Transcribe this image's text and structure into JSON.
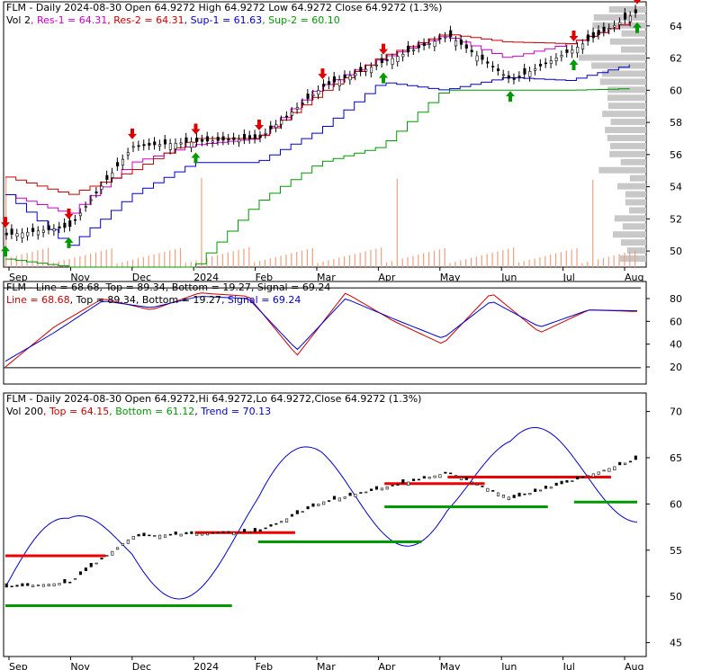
{
  "chart_data": [
    {
      "type": "line",
      "title": "FLM - Daily 2024-08-30 Open 64.9272  High 64.9272  Low 64.9272  Close 64.9272 (1.3%)",
      "legend": [
        {
          "label": "Vol 2",
          "color": "#000000"
        },
        {
          "label": "Res-1 = 64.31",
          "color": "#cc00cc"
        },
        {
          "label": "Res-2 = 64.31",
          "color": "#cc0000"
        },
        {
          "label": "Sup-1 = 61.63",
          "color": "#0000cc"
        },
        {
          "label": "Sup-2 = 60.10",
          "color": "#009900"
        }
      ],
      "x_tick_labels": [
        "Sep",
        "Nov",
        "Dec",
        "2024",
        "Feb",
        "Mar",
        "Apr",
        "May",
        "Jun",
        "Jul",
        "Aug"
      ],
      "y_tick_labels": [
        "64",
        "62",
        "60",
        "58",
        "56",
        "54",
        "52",
        "50"
      ],
      "ylim": [
        49,
        65.5
      ],
      "grid": false,
      "close_monthly": [
        {
          "x": "Sep",
          "y": 51.0
        },
        {
          "x": "Nov",
          "y": 51.5
        },
        {
          "x": "Dec",
          "y": 56.5
        },
        {
          "x": "2024",
          "y": 56.8
        },
        {
          "x": "Feb",
          "y": 57.0
        },
        {
          "x": "Mar",
          "y": 60.2
        },
        {
          "x": "Apr",
          "y": 61.8
        },
        {
          "x": "May",
          "y": 63.4
        },
        {
          "x": "Jun",
          "y": 60.6
        },
        {
          "x": "Jul",
          "y": 62.6
        },
        {
          "x": "Aug",
          "y": 64.9
        }
      ],
      "series": [
        {
          "name": "Res-1",
          "values": [
            53.5,
            52.3,
            55.5,
            56.6,
            57.0,
            60.2,
            62.0,
            63.4,
            62.0,
            62.9,
            64.3
          ]
        },
        {
          "name": "Res-2",
          "values": [
            54.6,
            53.5,
            55.0,
            57.0,
            57.0,
            59.8,
            62.1,
            63.5,
            63.0,
            62.9,
            64.3
          ]
        },
        {
          "name": "Sup-1",
          "values": [
            53.5,
            50.3,
            53.5,
            55.5,
            55.5,
            57.5,
            60.5,
            60.0,
            60.8,
            60.6,
            61.6
          ]
        },
        {
          "name": "Sup-2",
          "values": [
            49.5,
            49.0,
            49.0,
            49.0,
            53.0,
            55.5,
            56.5,
            60.0,
            60.0,
            60.0,
            60.1
          ]
        }
      ],
      "buy_signals": [
        "Sep",
        "Nov",
        "2024",
        "Apr",
        "Jun",
        "Jul",
        "Aug"
      ],
      "sell_signals": [
        "Sep",
        "Nov",
        "Dec",
        "2024",
        "Feb",
        "Mar",
        "Apr",
        "Jul",
        "Aug"
      ],
      "volume_profile": true
    },
    {
      "type": "line",
      "title": "FLM - Line = 68.68, Top = 89.34, Bottom = 19.27, Signal = 69.24",
      "legend": [
        {
          "label": "Line = 68.68",
          "color": "#cc0000"
        },
        {
          "label": "Top = 89.34",
          "color": "#000000"
        },
        {
          "label": "Bottom = 19.27",
          "color": "#000000"
        },
        {
          "label": "Signal = 69.24",
          "color": "#0000cc"
        }
      ],
      "x_tick_labels": [],
      "y_tick_labels": [
        "80",
        "60",
        "40",
        "20"
      ],
      "ylim": [
        5,
        95
      ],
      "top": 89.34,
      "bottom": 19.27,
      "series": [
        {
          "name": "Line",
          "values": [
            20,
            55,
            80,
            70,
            85,
            82,
            30,
            85,
            60,
            40,
            85,
            50,
            70,
            68.68
          ]
        },
        {
          "name": "Signal",
          "values": [
            25,
            50,
            78,
            72,
            82,
            80,
            35,
            80,
            62,
            45,
            78,
            55,
            70,
            69.24
          ]
        }
      ]
    },
    {
      "type": "line",
      "title": "FLM - Daily 2024-08-30 Open 64.9272,Hi 64.9272,Lo 64.9272,Close 64.9272 (1.3%)",
      "legend": [
        {
          "label": "Vol 200",
          "color": "#000000"
        },
        {
          "label": "Top = 64.15",
          "color": "#cc0000"
        },
        {
          "label": "Bottom = 61.12",
          "color": "#009900"
        },
        {
          "label": "Trend = 70.13",
          "color": "#0000cc"
        }
      ],
      "x_tick_labels": [
        "Sep",
        "Nov",
        "Dec",
        "2024",
        "Feb",
        "Mar",
        "Apr",
        "May",
        "Jun",
        "Jul",
        "Aug"
      ],
      "y_tick_labels": [
        "70",
        "65",
        "60",
        "55",
        "50",
        "45"
      ],
      "ylim": [
        43.5,
        72
      ],
      "top": 64.15,
      "bottom": 61.12,
      "trend": 70.13,
      "resistance_levels": [
        {
          "from": "Sep",
          "to": "Nov",
          "y": 54.4
        },
        {
          "from": "2024",
          "to": "Feb",
          "y": 56.9
        },
        {
          "from": "Apr",
          "to": "May",
          "y": 62.2
        },
        {
          "from": "May",
          "to": "Jul",
          "y": 62.9
        },
        {
          "from": "Aug",
          "to": "Aug",
          "y": 62.9
        }
      ],
      "support_levels": [
        {
          "from": "Sep",
          "to": "2024",
          "y": 49.0
        },
        {
          "from": "Feb",
          "to": "Apr",
          "y": 55.9
        },
        {
          "from": "Apr",
          "to": "Jun",
          "y": 59.7
        },
        {
          "from": "Jul",
          "to": "Aug",
          "y": 60.2
        },
        {
          "from": "Aug",
          "to": "Aug",
          "y": 61.1
        }
      ]
    }
  ]
}
